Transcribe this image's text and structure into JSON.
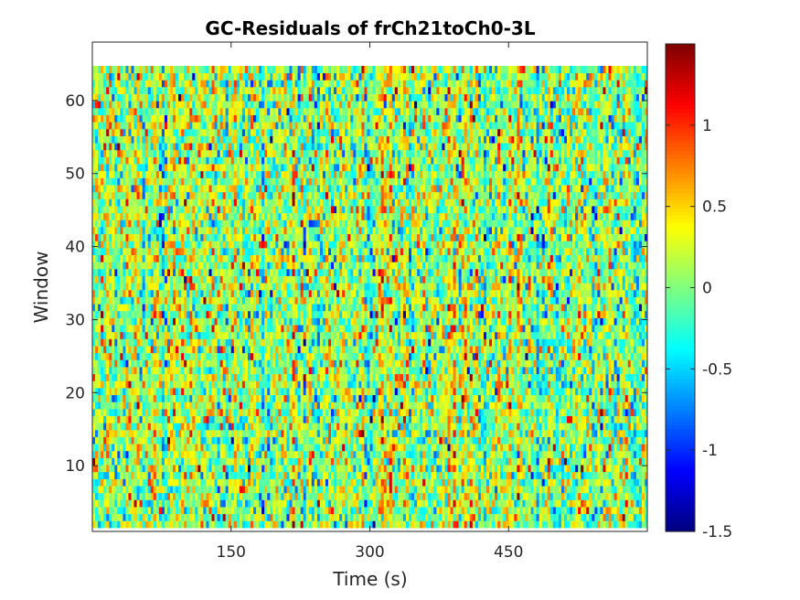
{
  "chart_data": {
    "type": "heatmap",
    "title": "GC-Residuals of frCh21toCh0-3L",
    "xlabel": "Time (s)",
    "ylabel": "Window",
    "colormap": "jet",
    "xlim": [
      0,
      600
    ],
    "ylim": [
      1,
      68
    ],
    "x_ticks": [
      150,
      300,
      450
    ],
    "y_ticks": [
      10,
      20,
      30,
      40,
      50,
      60
    ],
    "clim": [
      -1.5,
      1.5
    ],
    "colorbar_ticks": [
      -1.5,
      -1,
      -0.5,
      0,
      0.5,
      1
    ],
    "colorbar_tick_labels": [
      "-1.5",
      "-1",
      "-0.5",
      "0",
      "0.5",
      "1"
    ],
    "grid": "off",
    "n_time_bins": 200,
    "n_windows": 66,
    "value_mean": 0.05,
    "value_spread": 0.4,
    "random_seed": 12345
  }
}
